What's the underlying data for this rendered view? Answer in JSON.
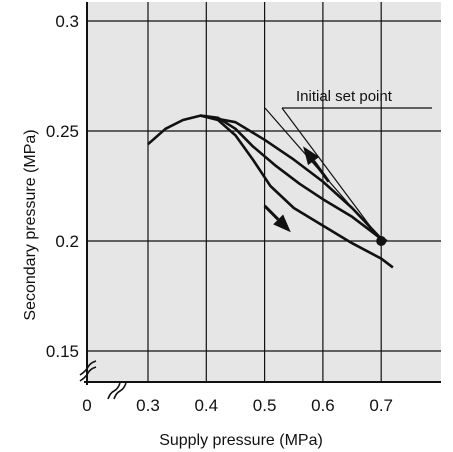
{
  "chart_data": {
    "type": "line",
    "title": "",
    "xlabel": "Supply pressure (MPa)",
    "ylabel": "Secondary pressure (MPa)",
    "x_ticks": [
      "0",
      "0.3",
      "0.4",
      "0.5",
      "0.6",
      "0.7"
    ],
    "y_ticks": [
      "0.15",
      "0.2",
      "0.25",
      "0.3"
    ],
    "xlim": [
      0.3,
      0.8
    ],
    "ylim": [
      0.13,
      0.305
    ],
    "grid": true,
    "background": "#e6e6e6",
    "axis_break": true,
    "series": [
      {
        "points": [
          [
            0.3,
            0.244
          ],
          [
            0.33,
            0.251
          ],
          [
            0.36,
            0.255
          ],
          [
            0.39,
            0.257
          ],
          [
            0.42,
            0.255
          ],
          [
            0.45,
            0.248
          ],
          [
            0.48,
            0.237
          ],
          [
            0.51,
            0.225
          ],
          [
            0.55,
            0.215
          ],
          [
            0.6,
            0.207
          ],
          [
            0.65,
            0.199
          ],
          [
            0.7,
            0.192
          ],
          [
            0.72,
            0.188
          ]
        ],
        "color": "#111111"
      },
      {
        "points": [
          [
            0.39,
            0.257
          ],
          [
            0.42,
            0.256
          ],
          [
            0.45,
            0.251
          ],
          [
            0.48,
            0.243
          ],
          [
            0.52,
            0.234
          ],
          [
            0.56,
            0.226
          ],
          [
            0.6,
            0.219
          ],
          [
            0.65,
            0.211
          ],
          [
            0.7,
            0.201
          ],
          [
            0.71,
            0.2
          ]
        ],
        "color": "#111111"
      },
      {
        "points": [
          [
            0.39,
            0.257
          ],
          [
            0.45,
            0.254
          ],
          [
            0.5,
            0.246
          ],
          [
            0.55,
            0.237
          ],
          [
            0.6,
            0.227
          ],
          [
            0.65,
            0.215
          ],
          [
            0.7,
            0.201
          ]
        ],
        "color": "#111111"
      }
    ],
    "arrows": [
      {
        "from": [
          0.61,
          0.227
        ],
        "to": [
          0.566,
          0.243
        ],
        "direction": "increasing supply pressure reversed (up-left)"
      },
      {
        "from": [
          0.5,
          0.216
        ],
        "to": [
          0.545,
          0.204
        ],
        "direction": "down-right"
      }
    ],
    "annotations": [
      {
        "text": "Initial set point",
        "point": [
          0.7,
          0.2
        ]
      }
    ]
  }
}
